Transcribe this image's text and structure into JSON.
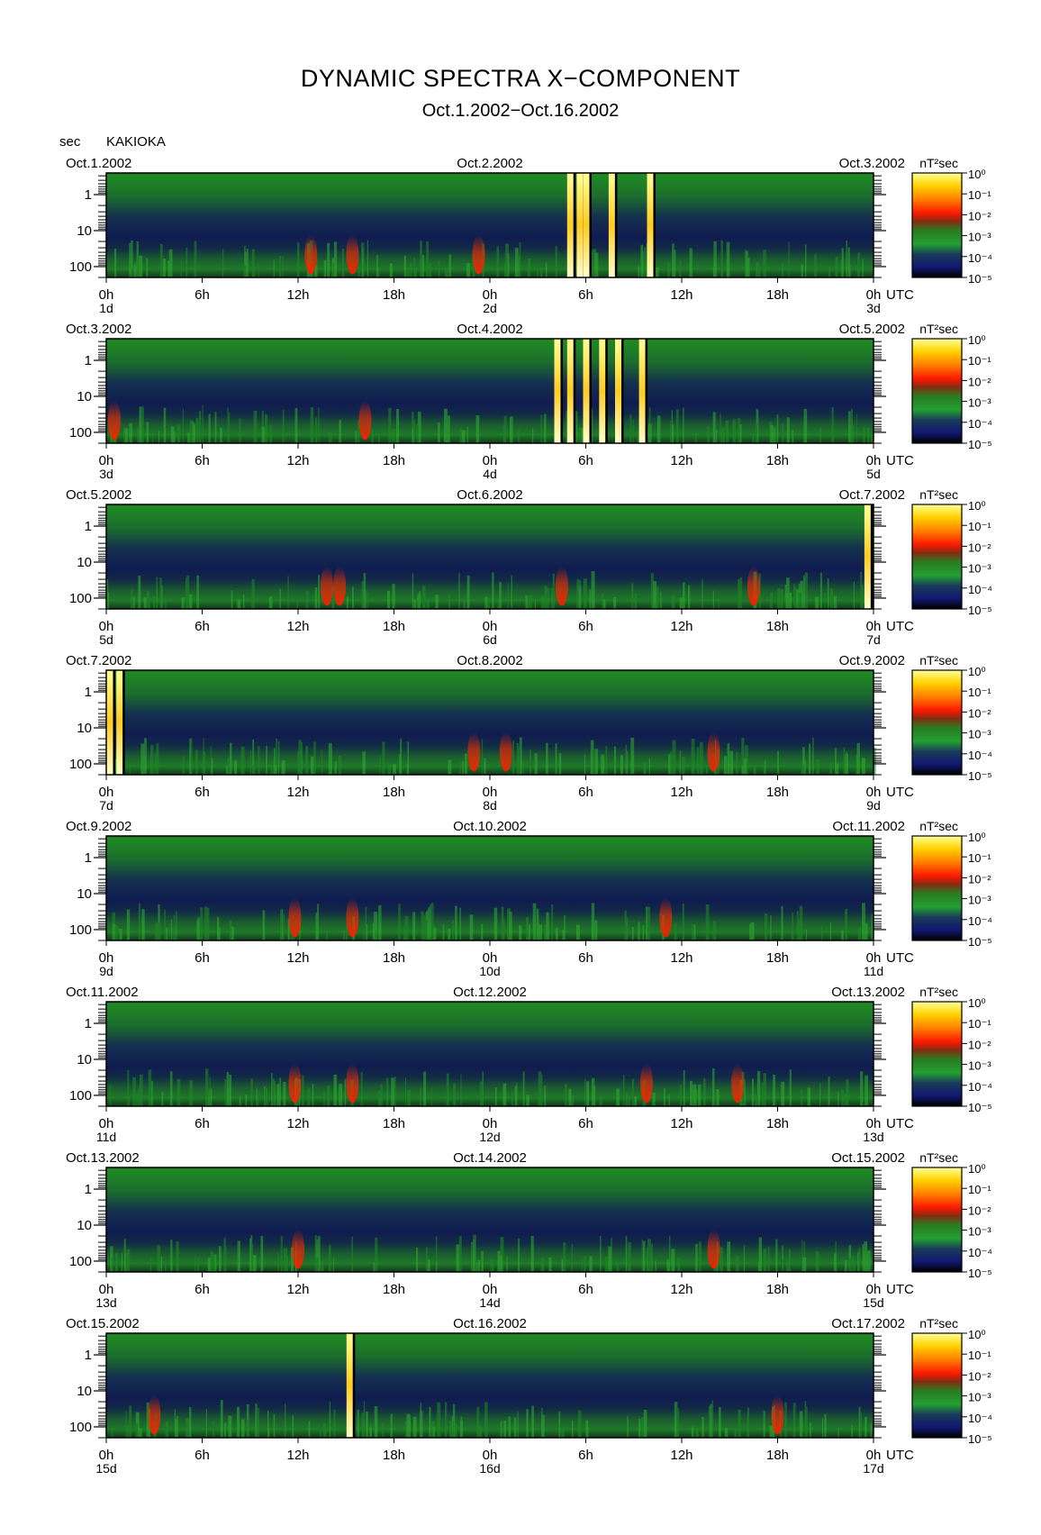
{
  "title": "DYNAMIC SPECTRA X−COMPONENT",
  "subtitle": "Oct.1.2002−Oct.16.2002",
  "station": "KAKIOKA",
  "period_unit": "sec",
  "power_unit": "nT²sec",
  "utc_label": "UTC",
  "colors": {
    "background": "#ffffff",
    "low": "#000000",
    "mid_low": "#1a2a6a",
    "mid": "#228b22",
    "high": "#ff2200",
    "top": "#ffff66"
  },
  "chart_data": {
    "type": "heatmap",
    "x_ticks": [
      "0h",
      "6h",
      "12h",
      "18h",
      "0h",
      "6h",
      "12h",
      "18h",
      "0h"
    ],
    "y_tick_labels": [
      "1",
      "10",
      "100"
    ],
    "y_ticks_sec": [
      1,
      10,
      100
    ],
    "y_scale": "log",
    "color_scale": "log",
    "colorbar_ticks": [
      "10⁰",
      "10⁻¹",
      "10⁻²",
      "10⁻³",
      "10⁻⁴",
      "10⁻⁵"
    ],
    "colorbar_range": [
      1e-05,
      1
    ],
    "panels": [
      {
        "left_date": "Oct.1.2002",
        "mid_date": "Oct.2.2002",
        "right_date": "Oct.3.2002",
        "day_labels": [
          "1d",
          "2d",
          "3d"
        ],
        "events": [
          {
            "hour": 12.8,
            "level": "red"
          },
          {
            "hour": 15.4,
            "level": "red"
          },
          {
            "hour": 23.3,
            "level": "red"
          },
          {
            "hour": 29.0,
            "level": "bright"
          },
          {
            "hour": 29.6,
            "level": "bright"
          },
          {
            "hour": 30.0,
            "level": "bright"
          },
          {
            "hour": 31.6,
            "level": "bright"
          },
          {
            "hour": 34.0,
            "level": "bright"
          }
        ]
      },
      {
        "left_date": "Oct.3.2002",
        "mid_date": "Oct.4.2002",
        "right_date": "Oct.5.2002",
        "day_labels": [
          "3d",
          "4d",
          "5d"
        ],
        "events": [
          {
            "hour": 0.5,
            "level": "red"
          },
          {
            "hour": 16.2,
            "level": "red"
          },
          {
            "hour": 28.2,
            "level": "bright"
          },
          {
            "hour": 29.0,
            "level": "bright"
          },
          {
            "hour": 30.0,
            "level": "bright"
          },
          {
            "hour": 31.0,
            "level": "bright"
          },
          {
            "hour": 32.0,
            "level": "bright"
          },
          {
            "hour": 33.5,
            "level": "bright"
          }
        ]
      },
      {
        "left_date": "Oct.5.2002",
        "mid_date": "Oct.6.2002",
        "right_date": "Oct.7.2002",
        "day_labels": [
          "5d",
          "6d",
          "7d"
        ],
        "events": [
          {
            "hour": 13.8,
            "level": "red"
          },
          {
            "hour": 14.6,
            "level": "red"
          },
          {
            "hour": 28.5,
            "level": "red"
          },
          {
            "hour": 40.5,
            "level": "red"
          },
          {
            "hour": 47.6,
            "level": "bright"
          }
        ]
      },
      {
        "left_date": "Oct.7.2002",
        "mid_date": "Oct.8.2002",
        "right_date": "Oct.9.2002",
        "day_labels": [
          "7d",
          "8d",
          "9d"
        ],
        "events": [
          {
            "hour": 0.2,
            "level": "bright"
          },
          {
            "hour": 0.8,
            "level": "bright"
          },
          {
            "hour": 23.0,
            "level": "red"
          },
          {
            "hour": 25.0,
            "level": "red"
          },
          {
            "hour": 38.0,
            "level": "red"
          }
        ]
      },
      {
        "left_date": "Oct.9.2002",
        "mid_date": "Oct.10.2002",
        "right_date": "Oct.11.2002",
        "day_labels": [
          "9d",
          "10d",
          "11d"
        ],
        "events": [
          {
            "hour": 11.8,
            "level": "red"
          },
          {
            "hour": 15.4,
            "level": "red"
          },
          {
            "hour": 35.0,
            "level": "red"
          }
        ]
      },
      {
        "left_date": "Oct.11.2002",
        "mid_date": "Oct.12.2002",
        "right_date": "Oct.13.2002",
        "day_labels": [
          "11d",
          "12d",
          "13d"
        ],
        "events": [
          {
            "hour": 11.8,
            "level": "red"
          },
          {
            "hour": 15.4,
            "level": "red"
          },
          {
            "hour": 33.8,
            "level": "red"
          },
          {
            "hour": 39.5,
            "level": "red"
          }
        ]
      },
      {
        "left_date": "Oct.13.2002",
        "mid_date": "Oct.14.2002",
        "right_date": "Oct.15.2002",
        "day_labels": [
          "13d",
          "14d",
          "15d"
        ],
        "events": [
          {
            "hour": 12.0,
            "level": "red"
          },
          {
            "hour": 38.0,
            "level": "red"
          }
        ]
      },
      {
        "left_date": "Oct.15.2002",
        "mid_date": "Oct.16.2002",
        "right_date": "Oct.17.2002",
        "day_labels": [
          "15d",
          "16d",
          "17d"
        ],
        "events": [
          {
            "hour": 3.0,
            "level": "red"
          },
          {
            "hour": 15.2,
            "level": "bright"
          },
          {
            "hour": 42.0,
            "level": "red"
          }
        ]
      }
    ]
  }
}
